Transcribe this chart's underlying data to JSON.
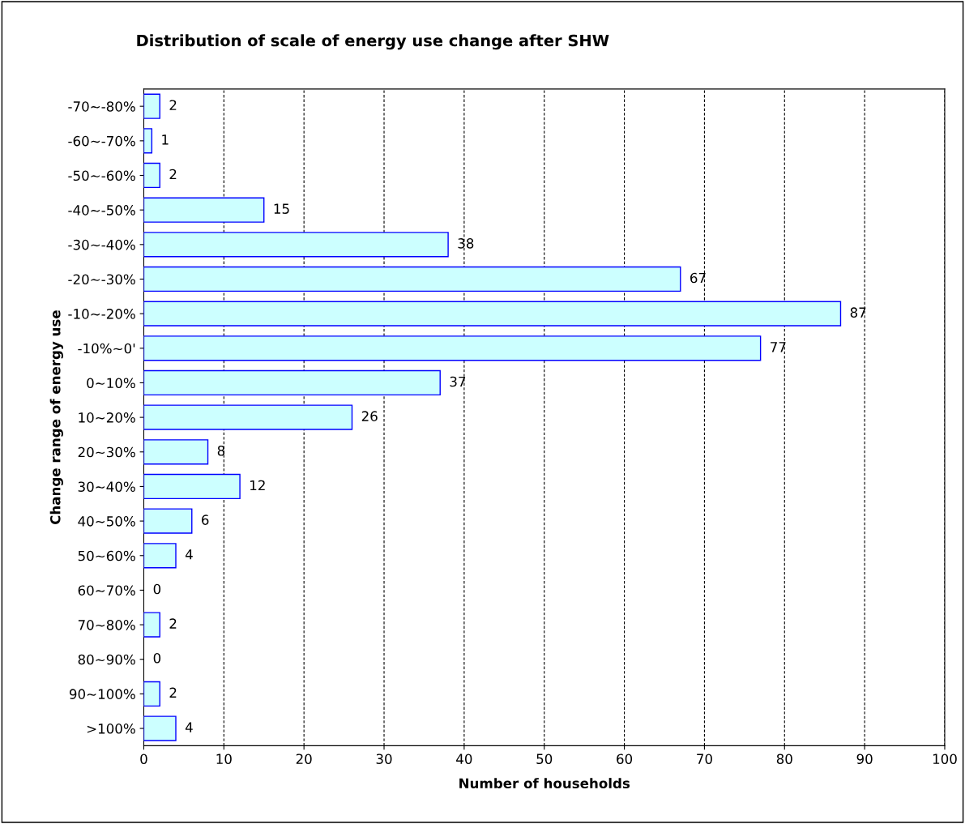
{
  "chart_data": {
    "type": "bar",
    "orientation": "horizontal",
    "title": "Distribution of scale of energy use change after SHW",
    "xlabel": "Number of households",
    "ylabel": "Change range of energy use",
    "categories": [
      "-70~-80%",
      "-60~-70%",
      "-50~-60%",
      "-40~-50%",
      "-30~-40%",
      "-20~-30%",
      "-10~-20%",
      "-10%~0'",
      "0~10%",
      "10~20%",
      "20~30%",
      "30~40%",
      "40~50%",
      "50~60%",
      "60~70%",
      "70~80%",
      "80~90%",
      "90~100%",
      ">100%"
    ],
    "values": [
      2,
      1,
      2,
      15,
      38,
      67,
      87,
      77,
      37,
      26,
      8,
      12,
      6,
      4,
      0,
      2,
      0,
      2,
      4
    ],
    "color": "#ccffff",
    "xlim": [
      0,
      100
    ],
    "xticks": [
      0,
      10,
      20,
      30,
      40,
      50,
      60,
      70,
      80,
      90,
      100
    ],
    "grid": "x",
    "data_labels": true
  }
}
